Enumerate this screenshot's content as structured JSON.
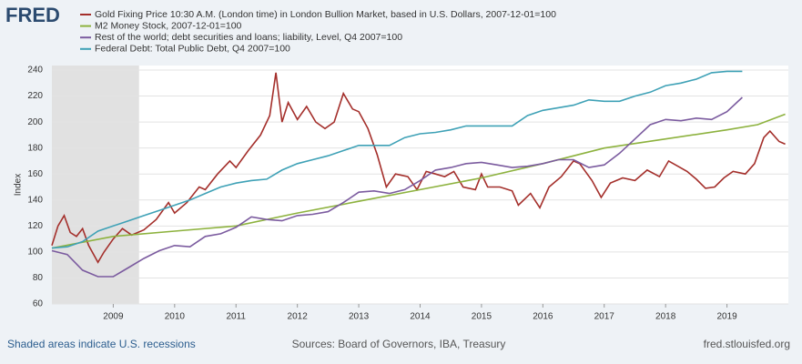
{
  "chart_data": {
    "type": "line",
    "logo": "FRED",
    "ylabel": "Index",
    "footer_left": "Shaded areas indicate U.S. recessions",
    "footer_center": "Sources: Board of Governors, IBA, Treasury",
    "footer_right": "fred.stlouisfed.org",
    "xlim": [
      2008,
      2020
    ],
    "xticks": [
      2009,
      2010,
      2011,
      2012,
      2013,
      2014,
      2015,
      2016,
      2017,
      2018,
      2019
    ],
    "ylim": [
      60,
      240
    ],
    "yticks": [
      60,
      80,
      100,
      120,
      140,
      160,
      180,
      200,
      220,
      240
    ],
    "grid": true,
    "recessions": [
      [
        2008,
        2009.42
      ]
    ],
    "series": [
      {
        "name": "Gold Fixing Price 10:30 A.M. (London time) in London Bullion Market, based in U.S. Dollars, 2007-12-01=100",
        "color": "#a42f2b",
        "x": [
          2008.0,
          2008.1,
          2008.2,
          2008.3,
          2008.4,
          2008.5,
          2008.6,
          2008.75,
          2008.85,
          2009.0,
          2009.15,
          2009.3,
          2009.5,
          2009.7,
          2009.9,
          2010.0,
          2010.2,
          2010.4,
          2010.5,
          2010.7,
          2010.9,
          2011.0,
          2011.2,
          2011.4,
          2011.55,
          2011.65,
          2011.75,
          2011.85,
          2012.0,
          2012.15,
          2012.3,
          2012.45,
          2012.6,
          2012.75,
          2012.9,
          2013.0,
          2013.15,
          2013.3,
          2013.45,
          2013.6,
          2013.8,
          2013.95,
          2014.1,
          2014.25,
          2014.4,
          2014.55,
          2014.7,
          2014.9,
          2015.0,
          2015.1,
          2015.3,
          2015.5,
          2015.6,
          2015.8,
          2015.95,
          2016.1,
          2016.3,
          2016.5,
          2016.6,
          2016.8,
          2016.95,
          2017.1,
          2017.3,
          2017.5,
          2017.7,
          2017.9,
          2018.05,
          2018.2,
          2018.35,
          2018.5,
          2018.65,
          2018.8,
          2018.95,
          2019.1,
          2019.3,
          2019.45,
          2019.6,
          2019.7,
          2019.85,
          2019.95
        ],
        "values": [
          105,
          120,
          128,
          115,
          112,
          118,
          105,
          92,
          100,
          110,
          118,
          113,
          117,
          125,
          138,
          130,
          138,
          150,
          148,
          160,
          170,
          165,
          178,
          190,
          205,
          238,
          200,
          215,
          202,
          212,
          200,
          195,
          200,
          222,
          210,
          208,
          195,
          175,
          150,
          160,
          158,
          148,
          162,
          160,
          158,
          162,
          150,
          148,
          160,
          150,
          150,
          147,
          136,
          145,
          134,
          150,
          158,
          170,
          168,
          155,
          142,
          153,
          157,
          155,
          163,
          158,
          170,
          166,
          162,
          156,
          149,
          150,
          157,
          162,
          160,
          168,
          188,
          193,
          185,
          183
        ]
      },
      {
        "name": "M2 Money Stock, 2007-12-01=100",
        "color": "#8db23e",
        "x": [
          2008,
          2009,
          2010,
          2011,
          2012,
          2013,
          2014,
          2015,
          2016,
          2017,
          2018,
          2019,
          2019.5,
          2019.95
        ],
        "values": [
          103,
          112,
          116,
          120,
          130,
          139,
          148,
          157,
          168,
          180,
          187,
          194,
          198,
          206
        ]
      },
      {
        "name": "Rest of the world; debt securities and loans; liability, Level, Q4 2007=100",
        "color": "#7b5b9f",
        "x": [
          2008.0,
          2008.25,
          2008.5,
          2008.75,
          2009.0,
          2009.25,
          2009.5,
          2009.75,
          2010.0,
          2010.25,
          2010.5,
          2010.75,
          2011.0,
          2011.25,
          2011.5,
          2011.75,
          2012.0,
          2012.25,
          2012.5,
          2012.75,
          2013.0,
          2013.25,
          2013.5,
          2013.75,
          2014.0,
          2014.25,
          2014.5,
          2014.75,
          2015.0,
          2015.25,
          2015.5,
          2015.75,
          2016.0,
          2016.25,
          2016.5,
          2016.75,
          2017.0,
          2017.25,
          2017.5,
          2017.75,
          2018.0,
          2018.25,
          2018.5,
          2018.75,
          2019.0,
          2019.25
        ],
        "values": [
          101,
          98,
          86,
          81,
          81,
          88,
          95,
          101,
          105,
          104,
          112,
          114,
          119,
          127,
          125,
          124,
          128,
          129,
          131,
          138,
          146,
          147,
          145,
          148,
          155,
          163,
          165,
          168,
          169,
          167,
          165,
          166,
          168,
          171,
          171,
          165,
          167,
          176,
          187,
          198,
          202,
          201,
          203,
          202,
          208,
          219
        ]
      },
      {
        "name": "Federal Debt: Total Public Debt, Q4 2007=100",
        "color": "#3ea1b6",
        "x": [
          2008.0,
          2008.25,
          2008.5,
          2008.75,
          2009.0,
          2009.25,
          2009.5,
          2009.75,
          2010.0,
          2010.25,
          2010.5,
          2010.75,
          2011.0,
          2011.25,
          2011.5,
          2011.75,
          2012.0,
          2012.25,
          2012.5,
          2012.75,
          2013.0,
          2013.25,
          2013.5,
          2013.75,
          2014.0,
          2014.25,
          2014.5,
          2014.75,
          2015.0,
          2015.25,
          2015.5,
          2015.75,
          2016.0,
          2016.25,
          2016.5,
          2016.75,
          2017.0,
          2017.25,
          2017.5,
          2017.75,
          2018.0,
          2018.25,
          2018.5,
          2018.75,
          2019.0,
          2019.25
        ],
        "values": [
          103,
          104,
          108,
          116,
          120,
          124,
          128,
          132,
          136,
          140,
          145,
          150,
          153,
          155,
          156,
          163,
          168,
          171,
          174,
          178,
          182,
          182,
          182,
          188,
          191,
          192,
          194,
          197,
          197,
          197,
          197,
          205,
          209,
          211,
          213,
          217,
          216,
          216,
          220,
          223,
          228,
          230,
          233,
          238,
          239,
          239
        ]
      }
    ]
  }
}
